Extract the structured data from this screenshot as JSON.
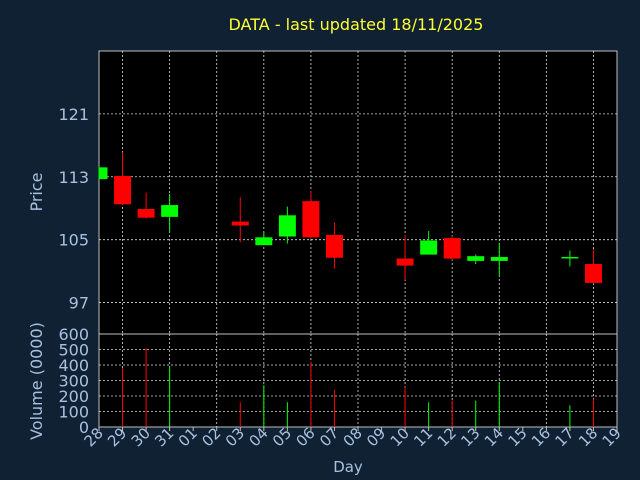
{
  "colors": {
    "background": "#0f2133",
    "panel": "#000000",
    "title": "#ffff33",
    "axis_text": "#a9c1e0",
    "grid": "#d9d9d9",
    "up": "#00ff00",
    "down": "#ff0000"
  },
  "chart_data": {
    "type": "candlestick",
    "title": "DATA - last updated 18/11/2025",
    "xlabel": "Day",
    "price_axis": {
      "ylabel": "Price",
      "ylim": [
        93,
        129
      ],
      "ticks": [
        97,
        105,
        113,
        121
      ]
    },
    "volume_axis": {
      "ylabel": "Volume (0000)",
      "ylim": [
        0,
        600
      ],
      "ticks": [
        0,
        100,
        200,
        300,
        400,
        500,
        600
      ]
    },
    "x_ticks": [
      "28",
      "29",
      "30",
      "31",
      "01",
      "02",
      "03",
      "04",
      "05",
      "06",
      "07",
      "08",
      "09",
      "10",
      "11",
      "12",
      "13",
      "14",
      "15",
      "16",
      "17",
      "18",
      "19"
    ],
    "grid": true,
    "candles": [
      {
        "day": "28",
        "open": 112.7,
        "high": 114.3,
        "low": 112.7,
        "close": 114.2,
        "volume": 0
      },
      {
        "day": "29",
        "open": 113.1,
        "high": 116.1,
        "low": 109.4,
        "close": 109.5,
        "volume": 380
      },
      {
        "day": "30",
        "open": 108.9,
        "high": 111.0,
        "low": 107.7,
        "close": 107.8,
        "volume": 510
      },
      {
        "day": "31",
        "open": 107.9,
        "high": 110.8,
        "low": 106.0,
        "close": 109.4,
        "volume": 390
      },
      {
        "day": "03",
        "open": 107.3,
        "high": 110.4,
        "low": 104.7,
        "close": 106.8,
        "volume": 160
      },
      {
        "day": "04",
        "open": 104.3,
        "high": 106.0,
        "low": 104.3,
        "close": 105.3,
        "volume": 270
      },
      {
        "day": "05",
        "open": 105.4,
        "high": 109.2,
        "low": 104.5,
        "close": 108.1,
        "volume": 160
      },
      {
        "day": "06",
        "open": 109.9,
        "high": 111.2,
        "low": 105.2,
        "close": 105.3,
        "volume": 420
      },
      {
        "day": "07",
        "open": 105.6,
        "high": 107.2,
        "low": 101.3,
        "close": 102.7,
        "volume": 240
      },
      {
        "day": "10",
        "open": 102.6,
        "high": 105.6,
        "low": 99.9,
        "close": 101.7,
        "volume": 260
      },
      {
        "day": "11",
        "open": 103.1,
        "high": 106.1,
        "low": 103.1,
        "close": 104.9,
        "volume": 160
      },
      {
        "day": "12",
        "open": 105.2,
        "high": 105.5,
        "low": 102.4,
        "close": 102.6,
        "volume": 170
      },
      {
        "day": "13",
        "open": 102.3,
        "high": 103.1,
        "low": 101.9,
        "close": 102.9,
        "volume": 170
      },
      {
        "day": "14",
        "open": 102.3,
        "high": 104.6,
        "low": 100.4,
        "close": 102.8,
        "volume": 290
      },
      {
        "day": "17",
        "open": 102.7,
        "high": 103.6,
        "low": 101.6,
        "close": 102.8,
        "volume": 140
      },
      {
        "day": "18",
        "open": 101.9,
        "high": 103.8,
        "low": 99.4,
        "close": 99.5,
        "volume": 180
      }
    ]
  }
}
